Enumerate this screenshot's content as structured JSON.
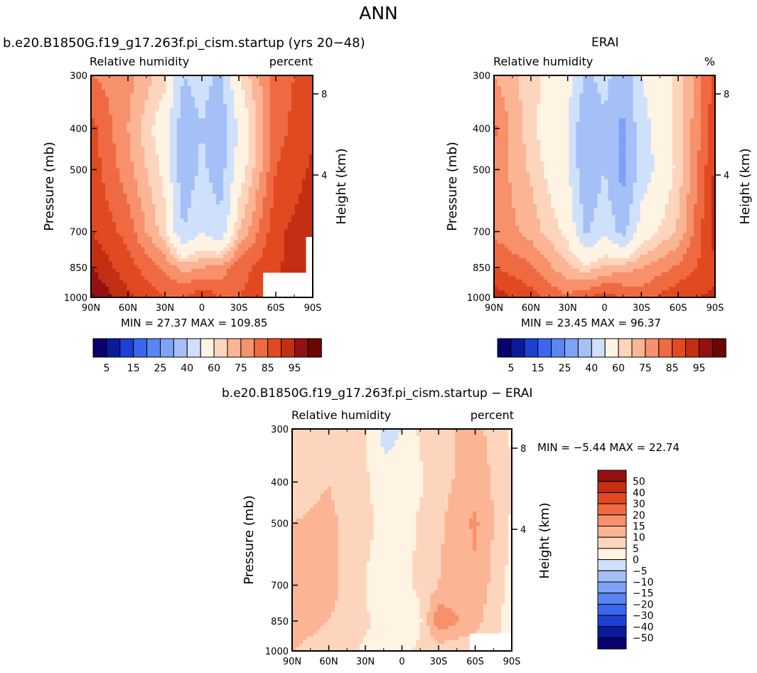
{
  "figure": {
    "title": "ANN",
    "panels": [
      {
        "title": "b.e20.B1850G.f19_g17.263f.pi_cism.startup (yrs 20−48)",
        "left_label": "Relative humidity",
        "right_label": "percent",
        "min_max": "MIN =    27.37    MAX =  109.85"
      },
      {
        "title": "ERAI",
        "left_label": "Relative humidity",
        "right_label": "%",
        "min_max": "MIN =    23.45    MAX =    96.37"
      },
      {
        "title": "b.e20.B1850G.f19_g17.263f.pi_cism.startup − ERAI",
        "left_label": "Relative humidity",
        "right_label": "percent",
        "min_max": "MIN =   −5.44    MAX =   22.74"
      }
    ]
  },
  "chart_data": [
    {
      "type": "heatmap",
      "title": "b.e20.B1850G.f19_g17.263f.pi_cism.startup (yrs 20−48)",
      "xlabel": "",
      "ylabel": "Pressure (mb)",
      "y2label": "Height (km)",
      "x_ticks": [
        "90N",
        "60N",
        "30N",
        "0",
        "30S",
        "60S",
        "90S"
      ],
      "y_ticks": [
        300,
        400,
        500,
        700,
        850,
        1000
      ],
      "y2_ticks": [
        8,
        4
      ],
      "min": 27.37,
      "max": 109.85,
      "colorbar": {
        "levels": [
          5,
          10,
          15,
          20,
          25,
          30,
          40,
          50,
          60,
          65,
          70,
          75,
          80,
          85,
          90,
          95
        ],
        "labels": [
          "5",
          "15",
          "25",
          "40",
          "60",
          "75",
          "85",
          "95"
        ],
        "colors": [
          "#08006b",
          "#0a1a9e",
          "#1e3fd6",
          "#3c66ee",
          "#5a86f3",
          "#7ea2f5",
          "#a4c0f7",
          "#cfe0fb",
          "#fff3e3",
          "#fdd5bd",
          "#fbb595",
          "#f7916b",
          "#ef6a43",
          "#e14a21",
          "#c22f13",
          "#951111",
          "#6e0505"
        ]
      },
      "grid": {
        "lat": [
          90,
          60,
          30,
          15,
          0,
          -15,
          -30,
          -60,
          -90
        ],
        "p": [
          300,
          400,
          500,
          700,
          850,
          1000
        ],
        "values": [
          [
            75,
            72,
            62,
            40,
            44,
            38,
            60,
            78,
            82
          ],
          [
            82,
            70,
            55,
            33,
            40,
            32,
            52,
            78,
            84
          ],
          [
            83,
            72,
            58,
            32,
            42,
            35,
            55,
            80,
            86
          ],
          [
            85,
            78,
            62,
            40,
            50,
            42,
            65,
            84,
            88
          ],
          [
            90,
            82,
            74,
            68,
            70,
            72,
            78,
            84,
            90
          ],
          [
            96,
            86,
            80,
            80,
            84,
            80,
            80,
            84,
            90
          ]
        ],
        "missing_corner": "lower-right (50S-90S, 850-1000 mb)"
      }
    },
    {
      "type": "heatmap",
      "title": "ERAI",
      "xlabel": "",
      "ylabel": "Pressure (mb)",
      "y2label": "Height (km)",
      "x_ticks": [
        "90N",
        "60N",
        "30N",
        "0",
        "30S",
        "60S",
        "90S"
      ],
      "y_ticks": [
        300,
        400,
        500,
        700,
        850,
        1000
      ],
      "y2_ticks": [
        8,
        4
      ],
      "min": 23.45,
      "max": 96.37,
      "colorbar": {
        "levels": [
          5,
          10,
          15,
          20,
          25,
          30,
          40,
          50,
          60,
          65,
          70,
          75,
          80,
          85,
          90,
          95
        ],
        "labels": [
          "5",
          "15",
          "25",
          "40",
          "60",
          "75",
          "85",
          "95"
        ],
        "colors": [
          "#08006b",
          "#0a1a9e",
          "#1e3fd6",
          "#3c66ee",
          "#5a86f3",
          "#7ea2f5",
          "#a4c0f7",
          "#cfe0fb",
          "#fff3e3",
          "#fdd5bd",
          "#fbb595",
          "#f7916b",
          "#ef6a43",
          "#e14a21",
          "#c22f13",
          "#951111",
          "#6e0505"
        ]
      },
      "grid": {
        "lat": [
          90,
          60,
          30,
          15,
          0,
          -15,
          -30,
          -60,
          -90
        ],
        "p": [
          300,
          400,
          500,
          700,
          850,
          1000
        ],
        "values": [
          [
            70,
            62,
            55,
            38,
            44,
            32,
            50,
            62,
            82
          ],
          [
            76,
            62,
            50,
            30,
            38,
            28,
            46,
            62,
            84
          ],
          [
            74,
            64,
            52,
            30,
            40,
            26,
            44,
            62,
            86
          ],
          [
            74,
            68,
            58,
            38,
            48,
            36,
            55,
            66,
            88
          ],
          [
            80,
            76,
            66,
            62,
            66,
            68,
            70,
            76,
            84
          ],
          [
            88,
            82,
            76,
            80,
            82,
            80,
            78,
            84,
            86
          ]
        ]
      }
    },
    {
      "type": "heatmap",
      "title": "b.e20.B1850G.f19_g17.263f.pi_cism.startup − ERAI",
      "xlabel": "",
      "ylabel": "Pressure (mb)",
      "y2label": "Height (km)",
      "x_ticks": [
        "90N",
        "60N",
        "30N",
        "0",
        "30S",
        "60S",
        "90S"
      ],
      "y_ticks": [
        300,
        400,
        500,
        700,
        850,
        1000
      ],
      "y2_ticks": [
        8,
        4
      ],
      "min": -5.44,
      "max": 22.74,
      "colorbar": {
        "levels": [
          -50,
          -40,
          -30,
          -20,
          -15,
          -10,
          -5,
          0,
          5,
          10,
          15,
          20,
          30,
          40,
          50
        ],
        "labels": [
          "50",
          "40",
          "30",
          "20",
          "15",
          "10",
          "5",
          "0",
          "−5",
          "−10",
          "−15",
          "−20",
          "−30",
          "−40",
          "−50"
        ],
        "colors": [
          "#08006b",
          "#0a1a9e",
          "#1e3fd6",
          "#3c66ee",
          "#5a86f3",
          "#7ea2f5",
          "#a4c0f7",
          "#cfe0fb",
          "#fff3e3",
          "#fdd5bd",
          "#fbb595",
          "#f7916b",
          "#ef6a43",
          "#e14a21",
          "#c22f13",
          "#951111"
        ]
      },
      "grid": {
        "lat": [
          90,
          60,
          30,
          15,
          0,
          -15,
          -30,
          -60,
          -90
        ],
        "p": [
          300,
          400,
          500,
          700,
          850,
          1000
        ],
        "values": [
          [
            6,
            10,
            5,
            -1,
            0,
            6,
            8,
            12,
            4
          ],
          [
            8,
            10,
            6,
            1,
            1,
            4,
            8,
            13,
            6
          ],
          [
            10,
            11,
            7,
            3,
            2,
            6,
            9,
            16,
            4
          ],
          [
            10,
            12,
            5,
            0,
            4,
            6,
            10,
            14,
            3
          ],
          [
            11,
            10,
            6,
            2,
            2,
            4,
            19,
            12,
            2
          ],
          [
            10,
            9,
            4,
            5,
            4,
            6,
            7,
            6,
            5
          ]
        ],
        "missing_corner": "lower-right (55S-90S, 900-1000 mb)"
      }
    }
  ]
}
